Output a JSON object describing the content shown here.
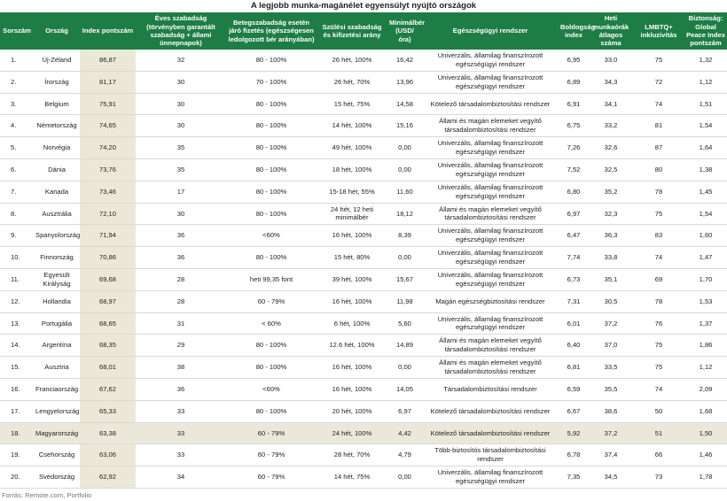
{
  "title": "A legjobb munka-magánélet egyensúlyt nyújtó országok",
  "table": {
    "header": [
      "Sorszám",
      "Ország",
      "Index pontszám",
      "Éves szabadság  (törvényben garantált szabadság + állami ünnepnapok)",
      "Betegszabadság esetén járó fizetés  (egészségesen ledolgozott bér arányában)",
      "Szülési szabadság és kifizetési arány",
      "Minimálbér (USD/óra)",
      "Egészségügyi rendszer",
      "Boldogság index",
      "Heti munkaórák átlagos száma",
      "LMBTQ+ inkluzivitás",
      "Biztonság: Global Peace Index pontszám"
    ],
    "rows": [
      [
        "1.",
        "Új-Zéland",
        "86,87",
        "32",
        "80 - 100%",
        "26 hét, 100%",
        "16,42",
        "Univerzális, államilag finanszírozott egészségügyi rendszer",
        "6,95",
        "33,0",
        "75",
        "1,32"
      ],
      [
        "2.",
        "Írország",
        "81,17",
        "30",
        "70 - 100%",
        "26 hét, 70%",
        "13,96",
        "Univerzális, államilag finanszírozott egészségügyi rendszer",
        "6,89",
        "34,3",
        "72",
        "1,12"
      ],
      [
        "3.",
        "Belgium",
        "75,91",
        "30",
        "80 - 100%",
        "15 hét, 75%",
        "14,58",
        "Kötelező társadalombiztosítási rendszer",
        "6,91",
        "34,1",
        "74",
        "1,51"
      ],
      [
        "4.",
        "Németország",
        "74,65",
        "30",
        "80 - 100%",
        "14 hét, 100%",
        "15,16",
        "Állami és magán elemeket vegyítő társadalombiztosítási rendszer",
        "6,75",
        "33,2",
        "81",
        "1,54"
      ],
      [
        "5.",
        "Norvégia",
        "74,20",
        "35",
        "80 - 100%",
        "49 hét, 100%",
        "0,00",
        "Univerzális, államilag finanszírozott egészségügyi rendszer",
        "7,26",
        "32,6",
        "87",
        "1,64"
      ],
      [
        "6.",
        "Dánia",
        "73,76",
        "35",
        "80 - 100%",
        "18 hét, 100%",
        "0,00",
        "Univerzális, államilag finanszírozott egészségügyi rendszer",
        "7,52",
        "32,5",
        "80",
        "1,38"
      ],
      [
        "7.",
        "Kanada",
        "73,46",
        "17",
        "80 - 100%",
        "15-18 hét, 55%",
        "11,60",
        "Univerzális, államilag finanszírozott egészségügyi rendszer",
        "6,80",
        "35,2",
        "78",
        "1,45"
      ],
      [
        "8.",
        "Ausztrália",
        "72,10",
        "30",
        "80 - 100%",
        "24 hét, 12 heti minimálbér",
        "18,12",
        "Állami és magán elemeket vegyítő társadalombiztosítási rendszer",
        "6,97",
        "32,3",
        "75",
        "1,54"
      ],
      [
        "9.",
        "Spanyolország",
        "71,94",
        "36",
        "<60%",
        "16 hét, 100%",
        "8,39",
        "Univerzális, államilag finanszírozott egészségügyi rendszer",
        "6,47",
        "36,3",
        "83",
        "1,60"
      ],
      [
        "10.",
        "Finnország",
        "70,86",
        "36",
        "80 - 100%",
        "15 hét, 80%",
        "0,00",
        "Univerzális, államilag finanszírozott egészségügyi rendszer",
        "7,74",
        "33,8",
        "74",
        "1,47"
      ],
      [
        "11.",
        "Egyesült Királyság",
        "69,68",
        "28",
        "heti 99,35 font",
        "39 hét, 100%",
        "15,67",
        "Univerzális, államilag finanszírozott egészségügyi rendszer",
        "6,73",
        "35,1",
        "69",
        "1,70"
      ],
      [
        "12.",
        "Hollandia",
        "68,97",
        "28",
        "60 - 79%",
        "16 hét, 100%",
        "11,98",
        "Magán egészségbiztosítási rendszer",
        "7,31",
        "30,5",
        "78",
        "1,53"
      ],
      [
        "13.",
        "Portugália",
        "68,65",
        "31",
        "< 60%",
        "6 hét, 100%",
        "5,60",
        "Univerzális, államilag finanszírozott egészségügyi rendszer",
        "6,01",
        "37,2",
        "76",
        "1,37"
      ],
      [
        "14.",
        "Argentína",
        "68,35",
        "29",
        "80 - 100%",
        "12.6 hét, 100%",
        "14,89",
        "Állami és magán elemeket vegyítő társadalombiztosítási rendszer",
        "6,40",
        "37,0",
        "75",
        "1,86"
      ],
      [
        "15.",
        "Ausztria",
        "68,01",
        "38",
        "80 - 100%",
        "16 hét, 100%",
        "0,00",
        "Állami és magán elemeket vegyítő társadalombiztosítási rendszer",
        "6,81",
        "33,5",
        "75",
        "1,12"
      ],
      [
        "16.",
        "Franciaország",
        "67,62",
        "36",
        "<60%",
        "16 hét, 100%",
        "14,05",
        "Társadalombiztosítási rendszer",
        "6,59",
        "35,5",
        "74",
        "2,09"
      ],
      [
        "17.",
        "Lengyelország",
        "65,33",
        "33",
        "80 - 100%",
        "20 hét, 100%",
        "6,97",
        "Kötelező társadalombiztosítási rendszer",
        "6,67",
        "38,6",
        "50",
        "1,68"
      ],
      [
        "18.",
        "Magyarország",
        "63,38",
        "33",
        "60 - 79%",
        "24 hét, 100%",
        "4,42",
        "Kötelező társadalombiztosítási rendszer",
        "5,92",
        "37,2",
        "51",
        "1,50"
      ],
      [
        "19.",
        "Csehország",
        "63,06",
        "33",
        "60 - 79%",
        "28 hét, 70%",
        "4,79",
        "Több-biztosítós társadalombiztosítási rendszer",
        "6,78",
        "37,4",
        "66",
        "1,46"
      ],
      [
        "20.",
        "Svédország",
        "62,92",
        "34",
        "60 - 79%",
        "14 hét, 75%",
        "0,00",
        "Univerzális, államilag finanszírozott egészségügyi rendszer",
        "7,35",
        "34,5",
        "73",
        "1,78"
      ]
    ]
  },
  "source": "Forrás: Remote.com, Portfolio"
}
